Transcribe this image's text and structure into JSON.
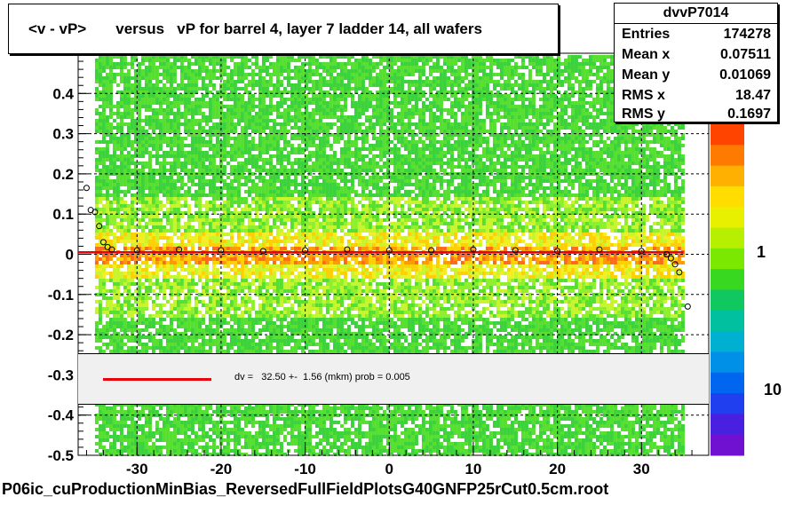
{
  "title": "<v - vP>       versus   vP for barrel 4, layer 7 ladder 14, all wafers",
  "stats": {
    "name": "dvvP7014",
    "rows": [
      {
        "label": "Entries",
        "value": "174278"
      },
      {
        "label": "Mean x",
        "value": "0.07511"
      },
      {
        "label": "Mean y",
        "value": "0.01069"
      },
      {
        "label": "RMS x",
        "value": "18.47"
      },
      {
        "label": "RMS y",
        "value": "0.1697"
      }
    ]
  },
  "fit_text": "dv =   32.50 +-  1.56 (mkm) prob = 0.005",
  "footer": "P06ic_cuProductionMinBias_ReversedFullFieldPlotsG40GNFP25rCut0.5cm.root",
  "colors": {
    "fit_line": "#e8000b",
    "grid": "#000000"
  },
  "chart_data": {
    "type": "heatmap",
    "xlim": [
      -37,
      38
    ],
    "ylim": [
      -0.5,
      0.5
    ],
    "x_ticks": [
      -30,
      -20,
      -10,
      0,
      10,
      20,
      30
    ],
    "y_ticks": [
      -0.5,
      -0.4,
      -0.3,
      -0.2,
      -0.1,
      0,
      0.1,
      0.2,
      0.3,
      0.4
    ],
    "y_tick_labels": [
      "-0.5",
      "-0.4",
      "-0.3",
      "-0.2",
      "-0.1",
      "0",
      "0.1",
      "0.2",
      "0.3",
      "0.4"
    ],
    "x_tick_labels": [
      "-30",
      "-20",
      "-10",
      "0",
      "10",
      "20",
      "30"
    ],
    "data_x_range": [
      -35,
      35
    ],
    "grid": true,
    "colorbar_labels": [
      "1",
      "10"
    ],
    "colorbar_note": "log scale",
    "fit": {
      "value_mkm": 32.5,
      "error_mkm": 1.56,
      "prob": 0.005
    },
    "profile_means": [
      {
        "x": -36,
        "y": 0.165
      },
      {
        "x": -35.5,
        "y": 0.11
      },
      {
        "x": -35,
        "y": 0.105
      },
      {
        "x": -34.5,
        "y": 0.07
      },
      {
        "x": -34,
        "y": 0.03
      },
      {
        "x": -33.5,
        "y": 0.018
      },
      {
        "x": -33,
        "y": 0.012
      },
      {
        "x": -30,
        "y": 0.01
      },
      {
        "x": -25,
        "y": 0.012
      },
      {
        "x": -20,
        "y": 0.01
      },
      {
        "x": -15,
        "y": 0.008
      },
      {
        "x": -10,
        "y": 0.01
      },
      {
        "x": -5,
        "y": 0.012
      },
      {
        "x": 0,
        "y": 0.01
      },
      {
        "x": 5,
        "y": 0.01
      },
      {
        "x": 10,
        "y": 0.012
      },
      {
        "x": 15,
        "y": 0.01
      },
      {
        "x": 20,
        "y": 0.008
      },
      {
        "x": 25,
        "y": 0.012
      },
      {
        "x": 30,
        "y": 0.008
      },
      {
        "x": 33,
        "y": 0.0
      },
      {
        "x": 33.5,
        "y": -0.01
      },
      {
        "x": 34,
        "y": -0.025
      },
      {
        "x": 34.5,
        "y": -0.045
      },
      {
        "x": 35.5,
        "y": -0.13
      }
    ]
  }
}
